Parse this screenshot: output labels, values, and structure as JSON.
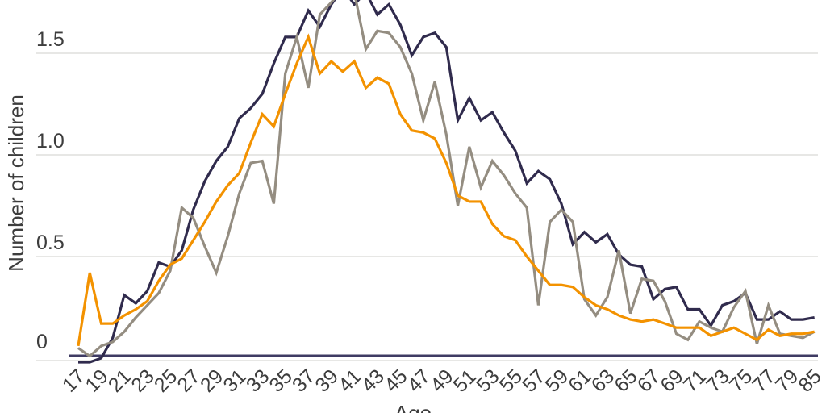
{
  "chart_data": {
    "type": "line",
    "title": "",
    "xlabel": "Age",
    "ylabel": "Number of children",
    "x": [
      17,
      18,
      19,
      20,
      21,
      22,
      23,
      24,
      25,
      26,
      27,
      28,
      29,
      30,
      31,
      32,
      33,
      34,
      35,
      36,
      37,
      38,
      39,
      40,
      41,
      42,
      43,
      44,
      45,
      46,
      47,
      48,
      49,
      50,
      51,
      52,
      53,
      54,
      55,
      56,
      57,
      58,
      59,
      60,
      61,
      62,
      63,
      64,
      65,
      66,
      67,
      68,
      69,
      70,
      71,
      72,
      73,
      74,
      75,
      76,
      77,
      78,
      79,
      80,
      85
    ],
    "x_tick_labels": [
      "17",
      "19",
      "21",
      "23",
      "25",
      "27",
      "29",
      "31",
      "33",
      "35",
      "37",
      "39",
      "41",
      "43",
      "45",
      "47",
      "49",
      "51",
      "53",
      "55",
      "57",
      "59",
      "61",
      "63",
      "65",
      "67",
      "69",
      "71",
      "73",
      "75",
      "77",
      "79",
      "85"
    ],
    "y_ticks": [
      0,
      0.5,
      1.0,
      1.5
    ],
    "y_tick_labels": [
      "0",
      "0.5",
      "1.0",
      "1.5"
    ],
    "ylim": [
      0,
      1.85
    ],
    "grid": "horizontal",
    "legend": "none",
    "series": [
      {
        "name": "navy",
        "color": "#302b4d",
        "values": [
          -0.02,
          -0.02,
          0.0,
          0.1,
          0.31,
          0.27,
          0.33,
          0.47,
          0.45,
          0.53,
          0.73,
          0.87,
          0.97,
          1.04,
          1.18,
          1.23,
          1.3,
          1.45,
          1.58,
          1.58,
          1.71,
          1.63,
          1.74,
          1.82,
          1.74,
          1.8,
          1.69,
          1.74,
          1.64,
          1.49,
          1.58,
          1.6,
          1.53,
          1.17,
          1.28,
          1.17,
          1.21,
          1.11,
          1.02,
          0.86,
          0.92,
          0.88,
          0.76,
          0.56,
          0.62,
          0.57,
          0.61,
          0.51,
          0.46,
          0.45,
          0.29,
          0.34,
          0.35,
          0.24,
          0.24,
          0.16,
          0.26,
          0.28,
          0.32,
          0.19,
          0.19,
          0.23,
          0.19,
          0.19,
          0.2
        ]
      },
      {
        "name": "gray",
        "color": "#948d81",
        "values": [
          0.05,
          0.01,
          0.06,
          0.08,
          0.13,
          0.2,
          0.26,
          0.32,
          0.43,
          0.74,
          0.69,
          0.55,
          0.42,
          0.6,
          0.81,
          0.96,
          0.97,
          0.76,
          1.4,
          1.58,
          1.33,
          1.69,
          1.75,
          1.82,
          1.8,
          1.52,
          1.61,
          1.6,
          1.53,
          1.4,
          1.17,
          1.36,
          1.1,
          0.75,
          1.04,
          0.84,
          0.97,
          0.9,
          0.81,
          0.74,
          0.26,
          0.67,
          0.73,
          0.67,
          0.29,
          0.21,
          0.3,
          0.53,
          0.22,
          0.39,
          0.38,
          0.28,
          0.12,
          0.09,
          0.18,
          0.15,
          0.13,
          0.25,
          0.33,
          0.07,
          0.26,
          0.12,
          0.11,
          0.1,
          0.13
        ]
      },
      {
        "name": "orange",
        "color": "#f39200",
        "values": [
          0.06,
          0.42,
          0.17,
          0.17,
          0.21,
          0.24,
          0.28,
          0.38,
          0.46,
          0.49,
          0.58,
          0.67,
          0.77,
          0.85,
          0.91,
          1.06,
          1.2,
          1.14,
          1.3,
          1.45,
          1.58,
          1.4,
          1.46,
          1.41,
          1.46,
          1.33,
          1.38,
          1.35,
          1.2,
          1.12,
          1.11,
          1.08,
          0.96,
          0.8,
          0.77,
          0.77,
          0.66,
          0.6,
          0.58,
          0.5,
          0.43,
          0.36,
          0.36,
          0.35,
          0.3,
          0.26,
          0.24,
          0.21,
          0.19,
          0.18,
          0.19,
          0.17,
          0.15,
          0.15,
          0.15,
          0.11,
          0.13,
          0.15,
          0.12,
          0.09,
          0.14,
          0.11,
          0.12,
          0.12,
          0.13
        ]
      }
    ]
  },
  "colors": {
    "background": "#ffffff",
    "gridline": "#e7e7e5",
    "axis_line": "#3f3b63",
    "tick_text": "#3d3d3d"
  }
}
